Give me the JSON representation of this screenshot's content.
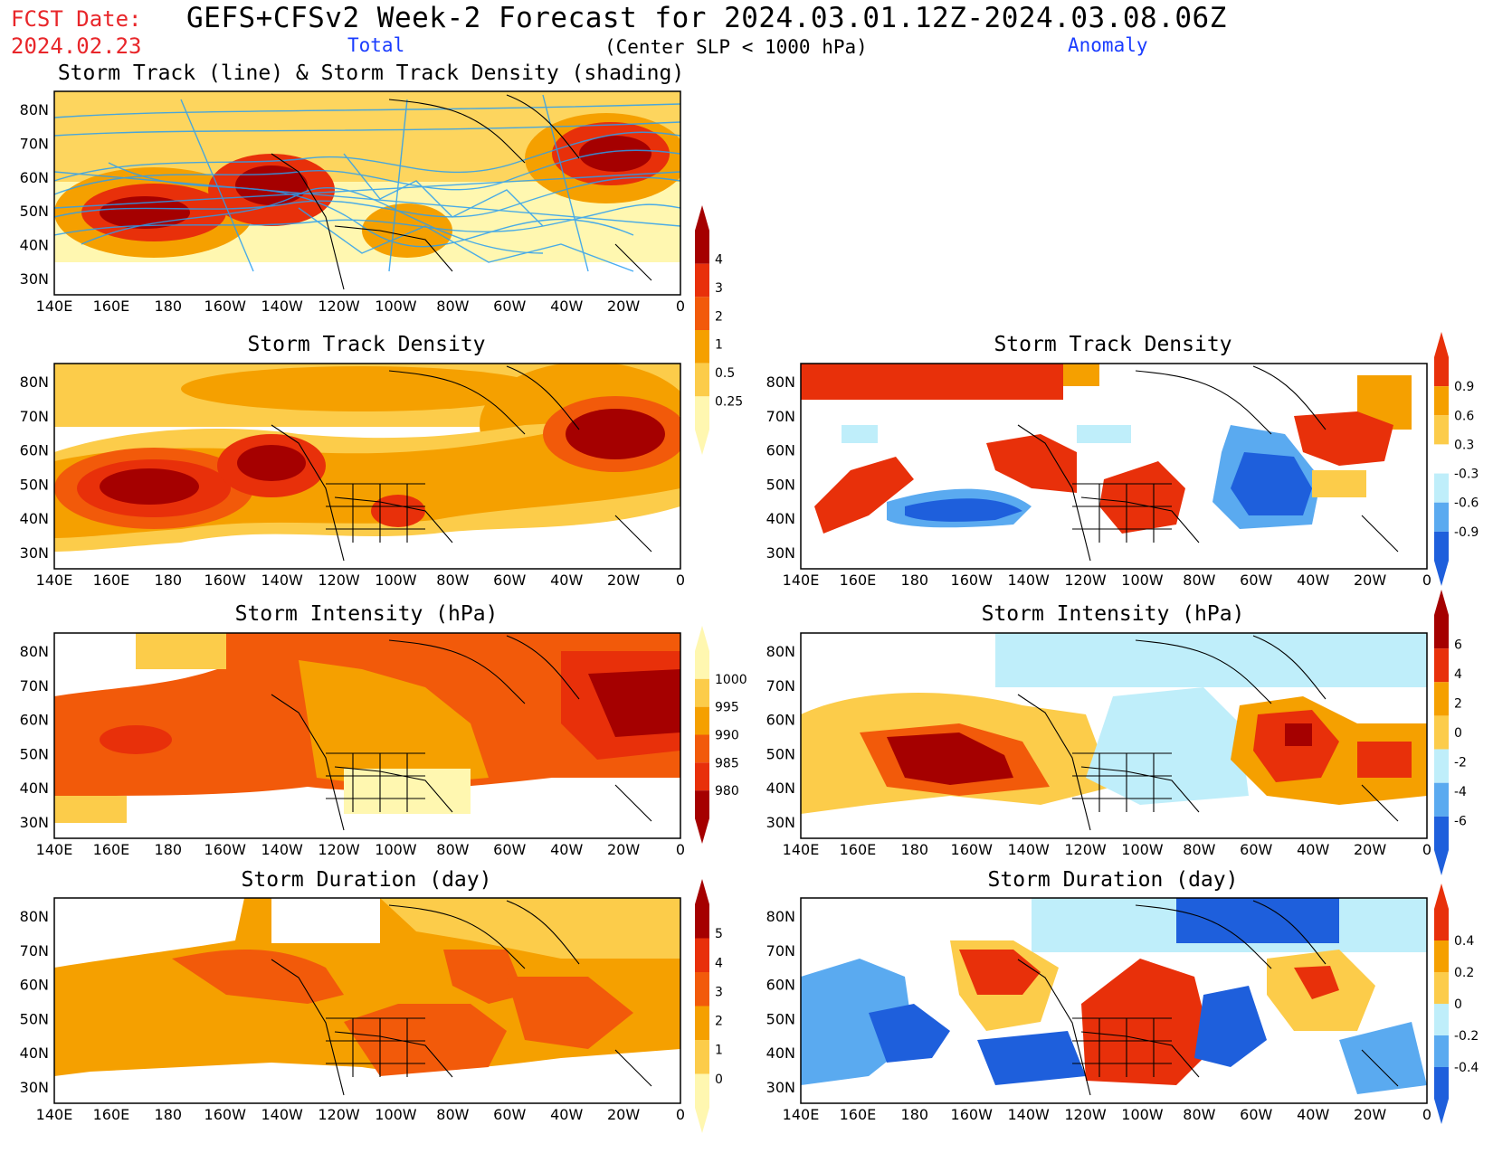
{
  "header": {
    "fcst_label": "FCST Date:",
    "fcst_date": "2024.02.23",
    "title": "GEFS+CFSv2 Week-2 Forecast for 2024.03.01.12Z-2024.03.08.06Z",
    "subtitle": "(Center SLP < 1000 hPa)",
    "col_total": "Total",
    "col_anomaly": "Anomaly"
  },
  "panels": {
    "track": "Storm Track (line) & Storm Track Density (shading)",
    "density": "Storm Track Density",
    "density_anom": "Storm Track Density",
    "intensity": "Storm Intensity (hPa)",
    "intensity_anom": "Storm Intensity (hPa)",
    "duration": "Storm Duration (day)",
    "duration_anom": "Storm Duration (day)"
  },
  "axes": {
    "lon": [
      "140E",
      "160E",
      "180",
      "160W",
      "140W",
      "120W",
      "100W",
      "80W",
      "60W",
      "40W",
      "20W",
      "0"
    ],
    "lat": [
      "80N",
      "70N",
      "60N",
      "50N",
      "40N",
      "30N"
    ]
  },
  "colorbars": {
    "density_total": [
      "4",
      "3",
      "2",
      "1",
      "0.5",
      "0.25"
    ],
    "density_anom": [
      "0.9",
      "0.6",
      "0.3",
      "-0.3",
      "-0.6",
      "-0.9"
    ],
    "intensity_total": [
      "1000",
      "995",
      "990",
      "985",
      "980"
    ],
    "intensity_anom": [
      "6",
      "4",
      "2",
      "0",
      "-2",
      "-4",
      "-6"
    ],
    "duration_total": [
      "5",
      "4",
      "3",
      "2",
      "1",
      "0"
    ],
    "duration_anom": [
      "0.4",
      "0.2",
      "0",
      "-0.2",
      "-0.4"
    ]
  },
  "colors": {
    "dark_red": "#a50000",
    "red": "#e8300a",
    "orange_red": "#f25a0a",
    "orange": "#f5a000",
    "light_orange": "#fccc4a",
    "pale_yellow": "#fff7b0",
    "light_blue": "#bfeefa",
    "blue": "#5aaaf0",
    "dark_blue": "#1e5fdc",
    "track_line": "#2a9ef0",
    "fcst_red": "#e8262a",
    "label_blue": "#1a3cff"
  }
}
